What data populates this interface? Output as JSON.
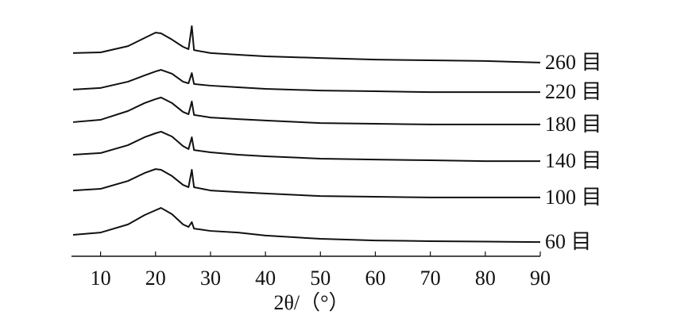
{
  "chart_data": {
    "type": "line",
    "xlabel": "2θ/（°）",
    "x": [
      5,
      10,
      15,
      18,
      20,
      21,
      23,
      25,
      26,
      26.6,
      27,
      30,
      35,
      40,
      50,
      60,
      70,
      80,
      90
    ],
    "xlim": [
      5,
      90
    ],
    "xticks": [
      10,
      20,
      30,
      40,
      50,
      60,
      70,
      80,
      90
    ],
    "ylim": [
      0,
      100
    ],
    "series": [
      {
        "name": "260 目",
        "color": "#111111",
        "values": [
          87.4,
          87.7,
          90.4,
          93.9,
          96.2,
          95.9,
          93.2,
          90.1,
          89.1,
          99.0,
          88.7,
          87.4,
          86.7,
          86.0,
          85.3,
          84.6,
          84.3,
          84.0,
          83.3
        ]
      },
      {
        "name": "220 目",
        "color": "#111111",
        "values": [
          71.7,
          72.4,
          75.1,
          77.8,
          79.5,
          80.2,
          78.5,
          75.1,
          74.4,
          78.8,
          74.1,
          73.4,
          72.7,
          72.0,
          71.3,
          71.0,
          70.6,
          70.6,
          70.6
        ]
      },
      {
        "name": "180 目",
        "color": "#111111",
        "values": [
          57.7,
          58.7,
          62.5,
          65.9,
          67.6,
          68.3,
          65.9,
          62.1,
          61.1,
          66.6,
          60.8,
          59.7,
          59.0,
          58.4,
          57.3,
          57.0,
          56.7,
          56.7,
          56.7
        ]
      },
      {
        "name": "140 目",
        "color": "#111111",
        "values": [
          43.7,
          44.4,
          47.8,
          51.2,
          52.9,
          53.6,
          51.5,
          47.4,
          46.1,
          51.2,
          45.7,
          44.7,
          43.7,
          43.0,
          42.0,
          41.6,
          41.3,
          40.9,
          40.9
        ]
      },
      {
        "name": "100 目",
        "color": "#111111",
        "values": [
          28.3,
          29.0,
          32.4,
          35.8,
          37.5,
          37.2,
          34.5,
          30.7,
          29.7,
          37.2,
          29.7,
          28.3,
          27.6,
          27.0,
          25.9,
          25.6,
          25.3,
          25.3,
          25.3
        ]
      },
      {
        "name": "60 目",
        "color": "#111111",
        "values": [
          9.2,
          10.2,
          13.7,
          17.7,
          19.8,
          20.8,
          18.1,
          13.7,
          12.6,
          14.7,
          11.9,
          10.9,
          10.2,
          8.9,
          7.5,
          6.8,
          6.5,
          6.3,
          6.1
        ]
      }
    ]
  }
}
